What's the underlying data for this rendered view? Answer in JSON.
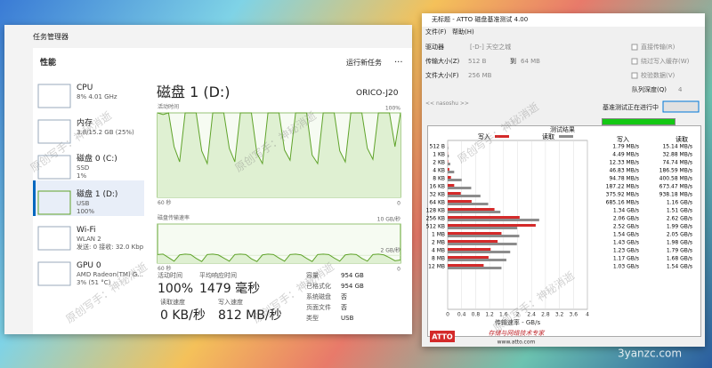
{
  "taskmanager": {
    "title": "任务管理器",
    "section": "性能",
    "run_task": "运行新任务",
    "more": "···",
    "devices": [
      {
        "name": "CPU",
        "line1": "8% 4.01 GHz"
      },
      {
        "name": "内存",
        "line1": "3.8/15.2 GB (25%)"
      },
      {
        "name": "磁盘 0 (C:)",
        "line1": "SSD",
        "line2": "1%"
      },
      {
        "name": "磁盘 1 (D:)",
        "line1": "USB",
        "line2": "100%"
      },
      {
        "name": "Wi-Fi",
        "line1": "WLAN 2",
        "line2": "发送: 0 接收: 32.0 Kbp"
      },
      {
        "name": "GPU 0",
        "line1": "AMD Radeon(TM) G...",
        "line2": "3% (51 °C)"
      }
    ],
    "disk_title": "磁盘 1 (D:)",
    "model": "ORICO-J20",
    "activity_chart": {
      "type": "line",
      "label": "活动时间",
      "x_label": "60 秒",
      "color": "#5fa32a",
      "ylim": [
        0,
        100
      ],
      "yticks": [
        0,
        {
          "value": 100,
          "label": "100%"
        }
      ],
      "values": [
        100,
        98,
        100,
        60,
        42,
        100,
        100,
        100,
        55,
        40,
        100,
        100,
        100,
        58,
        42,
        100,
        100,
        100,
        52,
        40,
        100,
        100,
        100,
        56,
        44,
        100,
        100,
        100,
        50,
        40,
        100,
        100,
        100,
        55,
        42,
        100,
        100,
        100,
        58,
        45,
        100,
        100,
        100,
        60,
        100
      ]
    },
    "transfer_chart": {
      "type": "line",
      "label": "磁盘传输速率",
      "x_label": "60 秒",
      "color": "#5fa32a",
      "ylim": [
        0,
        10
      ],
      "yticks": [
        0,
        {
          "value": 2,
          "label": "2 GB/秒"
        },
        {
          "value": 10,
          "label": "10 GB/秒"
        }
      ],
      "values": [
        2.2,
        2.3,
        1.4,
        0.5,
        2.1,
        2.3,
        2.2,
        1.2,
        0.4,
        2.2,
        2.3,
        2.1,
        1.3,
        0.5,
        2.2,
        2.3,
        2.2,
        1.1,
        0.4,
        2.1,
        2.3,
        2.2,
        1.3,
        0.5,
        2.2,
        2.3,
        2.1,
        1.2,
        0.4,
        2.2,
        2.3,
        2.2,
        1.3,
        0.5,
        2.1,
        2.3,
        2.2,
        1.2,
        0.5,
        2.2,
        2.3,
        2.1,
        1.4,
        0.6,
        0.8
      ]
    },
    "stats": [
      {
        "label": "活动时间",
        "value": "100%"
      },
      {
        "label": "平均响应时间",
        "value": "1479 毫秒"
      },
      {
        "label": "读取速度",
        "value": "0 KB/秒"
      },
      {
        "label": "写入速度",
        "value": "812 MB/秒"
      }
    ],
    "properties": [
      [
        "容量",
        "954 GB"
      ],
      [
        "已格式化",
        "954 GB"
      ],
      [
        "系统磁盘",
        "否"
      ],
      [
        "页面文件",
        "否"
      ],
      [
        "类型",
        "USB"
      ]
    ]
  },
  "atto": {
    "title": "无标题 - ATTO 磁盘基准测试 4.00",
    "menu": [
      "文件(F)",
      "帮助(H)"
    ],
    "drive_label": "驱动器",
    "drive": "[-D-] 天空之城",
    "transfer_label": "传输大小(Z)",
    "transfer_from": "512 B",
    "to": "到",
    "transfer_to": "64 MB",
    "file_size_label": "文件大小(F)",
    "file_size": "256 MB",
    "options": [
      "直接传输(R)",
      "绕过写入缓存(W)",
      "校验数据(V)"
    ],
    "queue_label": "队列深度(Q)",
    "queue": "4",
    "description": "<< nasoshu >>",
    "status": "基准测试正在进行中",
    "cancel": "取消",
    "results_title": "测试结果",
    "chart": {
      "type": "bar",
      "x_label": "传输速率 - GB/s",
      "xlim": [
        0,
        4
      ],
      "xticks": [
        0,
        0.4,
        0.8,
        1.2,
        1.6,
        2,
        2.4,
        2.8,
        3.2,
        3.6,
        4
      ],
      "categories": [
        "512 B",
        "1 KB",
        "2 KB",
        "4 KB",
        "8 KB",
        "16 KB",
        "32 KB",
        "64 KB",
        "128 KB",
        "256 KB",
        "512 KB",
        "1 MB",
        "2 MB",
        "4 MB",
        "8 MB",
        "12 MB"
      ],
      "series": [
        {
          "name": "写入",
          "color": "#d42a2a",
          "values": [
            0.00179,
            0.00449,
            0.01233,
            0.04683,
            0.09478,
            0.18722,
            0.37592,
            0.68516,
            1.34,
            2.06,
            2.52,
            1.54,
            1.43,
            1.23,
            1.17,
            1.03
          ],
          "value_labels": [
            "1.79 MB/s",
            "4.49 MB/s",
            "12.33 MB/s",
            "46.83 MB/s",
            "94.78 MB/s",
            "187.22 MB/s",
            "375.92 MB/s",
            "685.16 MB/s",
            "1.34 GB/s",
            "2.06 GB/s",
            "2.52 GB/s",
            "1.54 GB/s",
            "1.43 GB/s",
            "1.23 GB/s",
            "1.17 GB/s",
            "1.03 GB/s"
          ]
        },
        {
          "name": "读取",
          "color": "#8c8c8c",
          "values": [
            0.01514,
            0.03288,
            0.07474,
            0.18659,
            0.40058,
            0.67347,
            0.93818,
            1.16,
            1.51,
            2.62,
            1.99,
            2.05,
            1.98,
            1.79,
            1.68,
            1.54
          ],
          "value_labels": [
            "15.14 MB/s",
            "32.88 MB/s",
            "74.74 MB/s",
            "186.59 MB/s",
            "400.58 MB/s",
            "673.47 MB/s",
            "938.18 MB/s",
            "1.16 GB/s",
            "1.51 GB/s",
            "2.62 GB/s",
            "1.99 GB/s",
            "2.05 GB/s",
            "1.98 GB/s",
            "1.79 GB/s",
            "1.68 GB/s",
            "1.54 GB/s"
          ]
        }
      ]
    },
    "brand": "ATTO",
    "slogan": "存储与网络技术专家",
    "url": "www.atto.com"
  },
  "watermark": "原创写手：神秘消逝",
  "site_logo": "三只眼",
  "site_url": "3yanzc.com"
}
